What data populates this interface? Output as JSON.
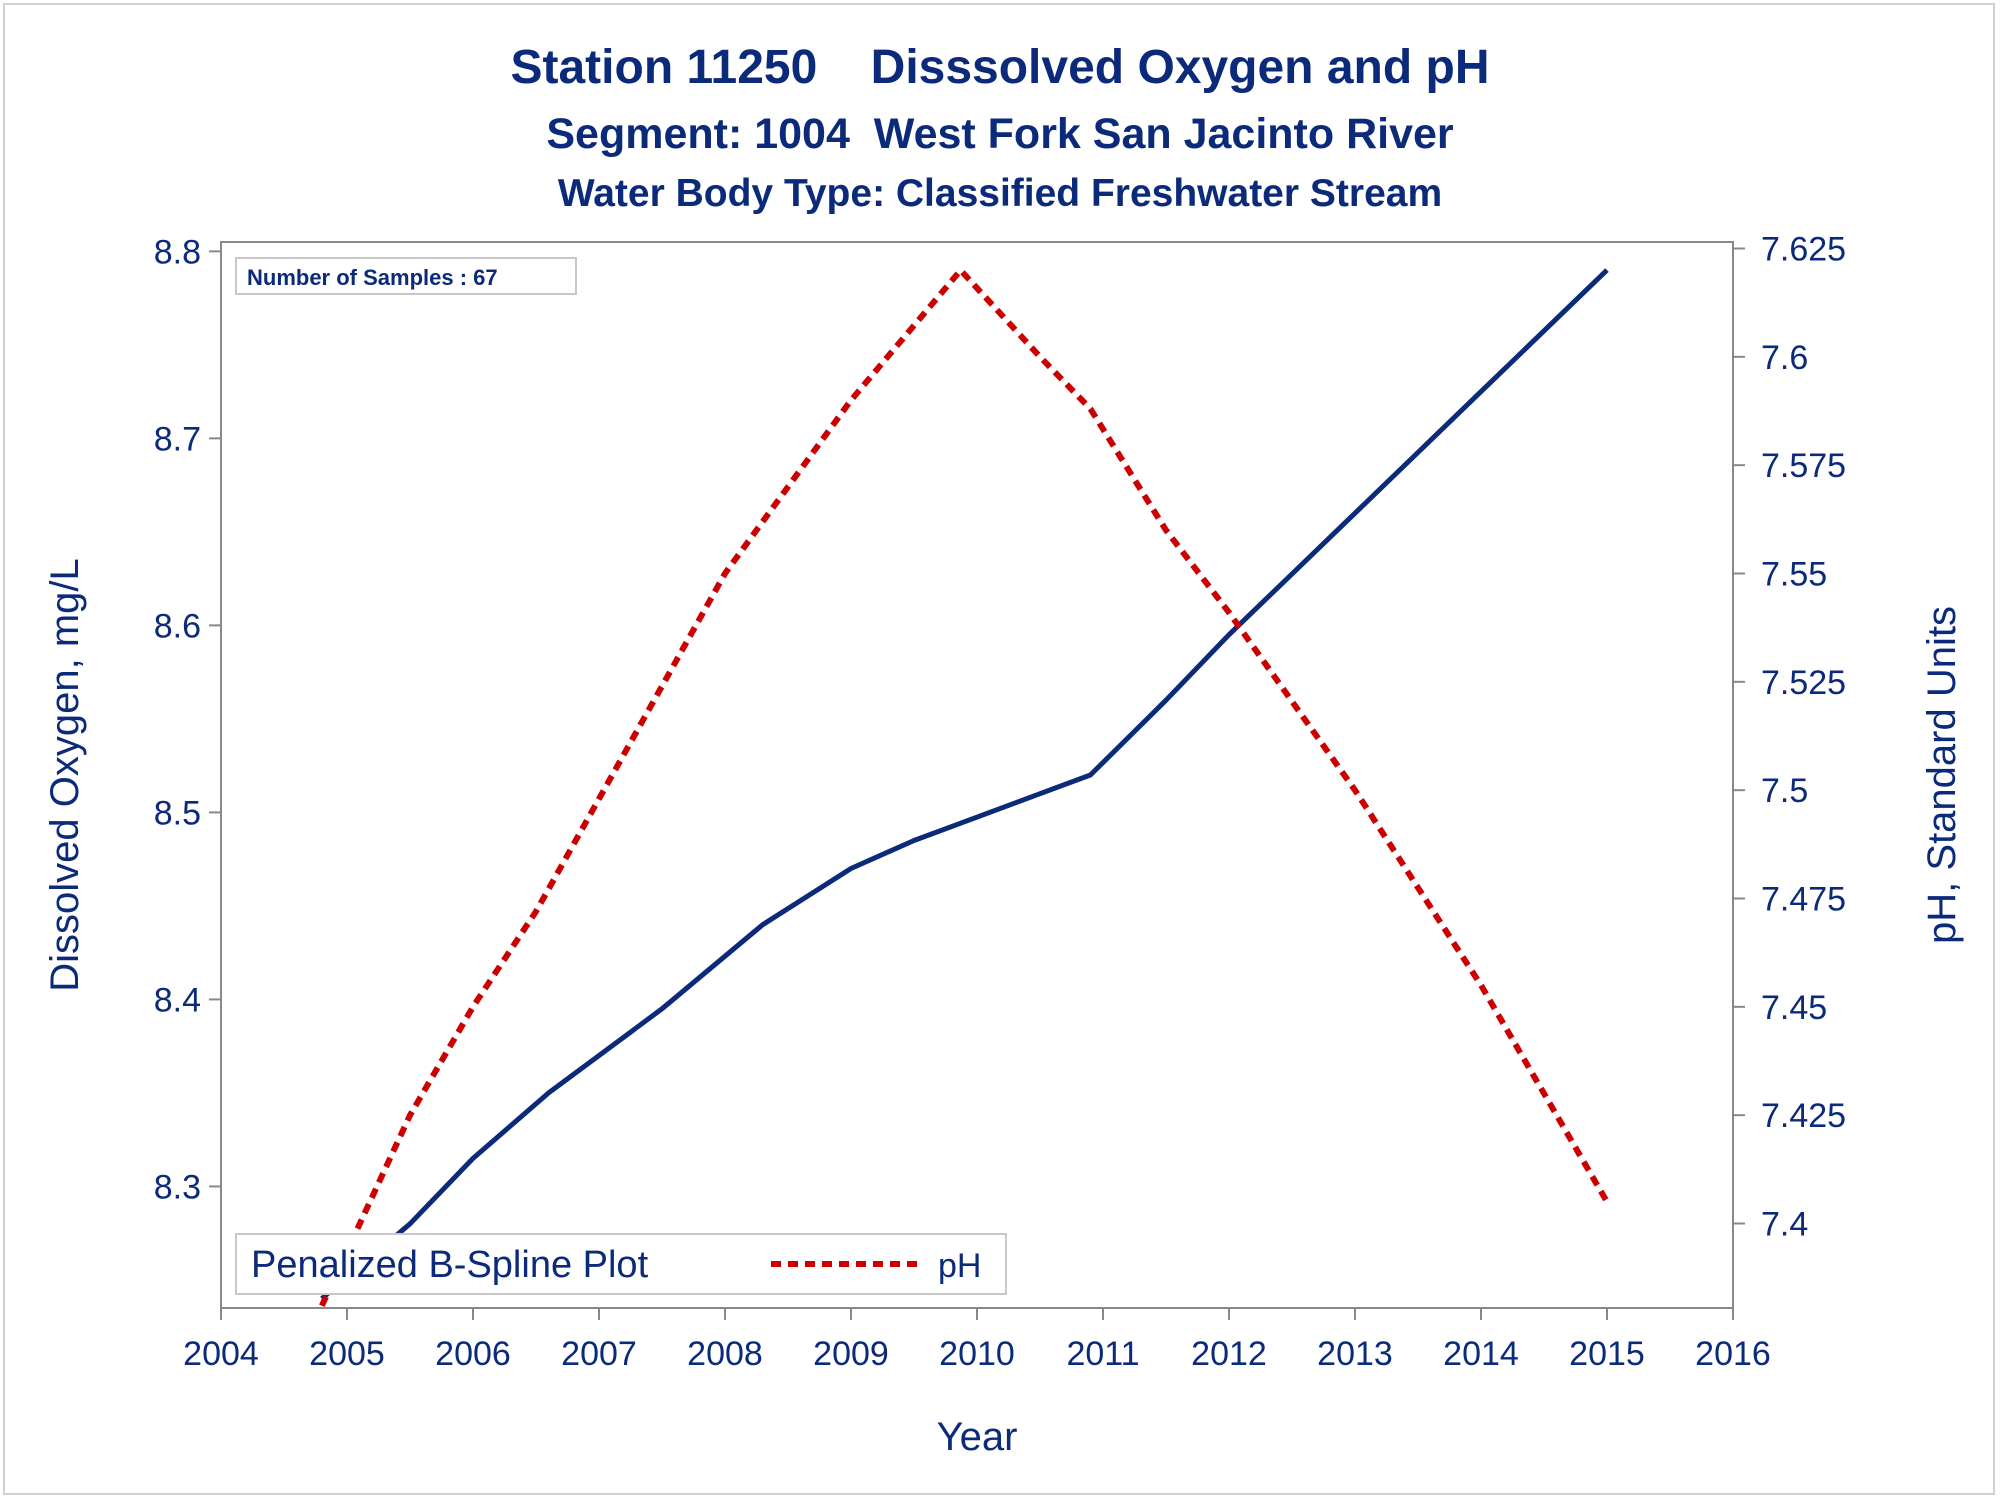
{
  "titles": {
    "line1": "Station 11250    Disssolved Oxygen and pH",
    "line2": "Segment: 1004  West Fork San Jacinto River",
    "line3": "Water Body Type: Classified Freshwater Stream"
  },
  "inset_label": "Number of Samples : 67",
  "legend": {
    "do_label": "Penalized B-Spline Plot",
    "ph_label": "pH"
  },
  "colors": {
    "do_line": "#0b2a7a",
    "ph_line": "#cc0000",
    "text": "#0b2a7a",
    "axis": "#888888"
  },
  "chart_data": {
    "type": "line",
    "xlabel": "Year",
    "ylabel": "Dissolved Oxygen, mg/L",
    "y2label": "pH, Standard Units",
    "xlim": [
      2004,
      2016
    ],
    "ylim": [
      8.235,
      8.805
    ],
    "y2lim": [
      7.3805,
      7.6265
    ],
    "x_ticks": [
      2004,
      2005,
      2006,
      2007,
      2008,
      2009,
      2010,
      2011,
      2012,
      2013,
      2014,
      2015,
      2016
    ],
    "y_ticks": [
      8.3,
      8.4,
      8.5,
      8.6,
      8.7,
      8.8
    ],
    "y2_ticks": [
      "7.4",
      "7.425",
      "7.45",
      "7.475",
      "7.5",
      "7.525",
      "7.55",
      "7.575",
      "7.6",
      "7.625"
    ],
    "legend_position": "bottom-left inside",
    "grid": false,
    "series": [
      {
        "name": "Penalized B-Spline Plot",
        "axis": "left",
        "style": "solid",
        "x": [
          2004.8,
          2005.5,
          2006.0,
          2006.6,
          2007.5,
          2008.3,
          2009.0,
          2009.5,
          2009.9,
          2010.5,
          2010.9,
          2011.5,
          2012.0,
          2013.0,
          2014.0,
          2015.0
        ],
        "y": [
          8.24,
          8.28,
          8.315,
          8.35,
          8.395,
          8.44,
          8.47,
          8.485,
          8.495,
          8.51,
          8.52,
          8.56,
          8.595,
          8.66,
          8.725,
          8.79
        ]
      },
      {
        "name": "pH",
        "axis": "right",
        "style": "dashed",
        "x": [
          2004.8,
          2005.5,
          2006.0,
          2006.5,
          2007.0,
          2008.0,
          2009.0,
          2009.87,
          2010.5,
          2010.9,
          2011.5,
          2012.0,
          2013.0,
          2014.0,
          2015.0
        ],
        "y": [
          7.381,
          7.425,
          7.45,
          7.472,
          7.498,
          7.55,
          7.59,
          7.62,
          7.6,
          7.588,
          7.56,
          7.541,
          7.5,
          7.455,
          7.405
        ]
      }
    ]
  }
}
